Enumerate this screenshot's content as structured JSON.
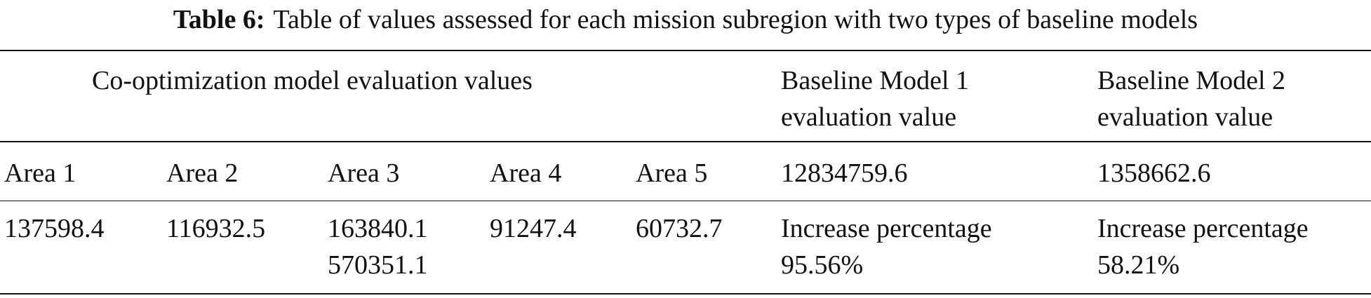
{
  "caption": {
    "label": "Table 6:",
    "text": "Table of values assessed for each mission subregion with two types of baseline models"
  },
  "table": {
    "header": [
      [
        "Co-optimization model evaluation values"
      ],
      [
        "Baseline Model 1",
        "evaluation value"
      ],
      [
        "Baseline Model 2",
        "evaluation value"
      ]
    ],
    "rows": [
      [
        [
          "Area 1"
        ],
        [
          "Area 2"
        ],
        [
          "Area 3"
        ],
        [
          "Area 4"
        ],
        [
          "Area 5"
        ],
        [
          "12834759.6"
        ],
        [
          "1358662.6"
        ]
      ],
      [
        [
          "137598.4"
        ],
        [
          "116932.5"
        ],
        [
          "163840.1",
          "570351.1"
        ],
        [
          "91247.4"
        ],
        [
          "60732.7"
        ],
        [
          "Increase percentage",
          "95.56%"
        ],
        [
          "Increase percentage",
          "58.21%"
        ]
      ]
    ]
  }
}
